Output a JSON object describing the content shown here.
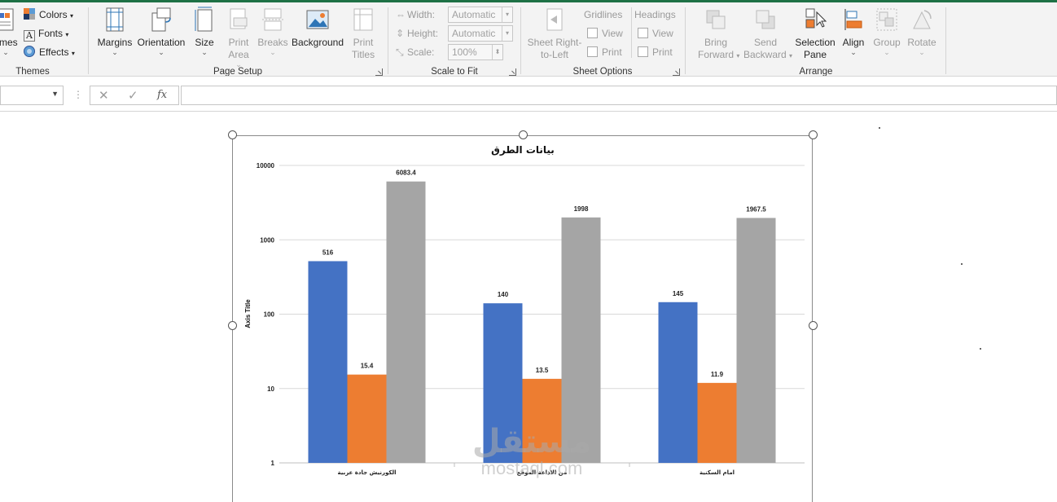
{
  "ribbon": {
    "themes": {
      "label": "Themes",
      "themes_btn": "emes",
      "colors": "Colors",
      "fonts": "Fonts",
      "effects": "Effects"
    },
    "page_setup": {
      "label": "Page Setup",
      "margins": "Margins",
      "orientation": "Orientation",
      "size": "Size",
      "print_area_1": "Print",
      "print_area_2": "Area",
      "breaks": "Breaks",
      "background": "Background",
      "print_titles_1": "Print",
      "print_titles_2": "Titles"
    },
    "scale_to_fit": {
      "label": "Scale to Fit",
      "width_label": "Width:",
      "width_value": "Automatic",
      "height_label": "Height:",
      "height_value": "Automatic",
      "scale_label": "Scale:",
      "scale_value": "100%"
    },
    "sheet_options": {
      "label": "Sheet Options",
      "sheet_rtl_1": "Sheet Right-",
      "sheet_rtl_2": "to-Left",
      "gridlines": "Gridlines",
      "headings": "Headings",
      "view": "View",
      "print": "Print"
    },
    "arrange": {
      "label": "Arrange",
      "bring_forward_1": "Bring",
      "bring_forward_2": "Forward",
      "send_backward_1": "Send",
      "send_backward_2": "Backward",
      "selection_pane_1": "Selection",
      "selection_pane_2": "Pane",
      "align": "Align",
      "group": "Group",
      "rotate": "Rotate"
    }
  },
  "formula_bar": {
    "cancel_glyph": "✕",
    "enter_glyph": "✓",
    "fx_glyph": "fx"
  },
  "watermark": {
    "arabic": "مستقل",
    "latin": "mostaql.com"
  },
  "chart_data": {
    "type": "bar",
    "title": "بيانات الطرق",
    "ylabel": "Axis Title",
    "xlabel": "",
    "yscale": "log",
    "ylim": [
      1,
      10000
    ],
    "yticks": [
      "1",
      "10",
      "100",
      "1000",
      "10000"
    ],
    "grid": true,
    "categories": [
      "الكورنيش جادة عربية",
      "من الاذاعة الموقع",
      "امام السكنية"
    ],
    "series": [
      {
        "values": [
          516,
          140,
          145
        ],
        "color": "#4472c4"
      },
      {
        "values": [
          15.4,
          13.5,
          11.9
        ],
        "color": "#ed7d31"
      },
      {
        "values": [
          6083.4,
          1998,
          1967.5
        ],
        "color": "#a5a5a5"
      }
    ],
    "data_labels": [
      [
        "516",
        "140",
        "145"
      ],
      [
        "15.4",
        "13.5",
        "11.9"
      ],
      [
        "6083.4",
        "1998",
        "1967.5"
      ]
    ]
  }
}
